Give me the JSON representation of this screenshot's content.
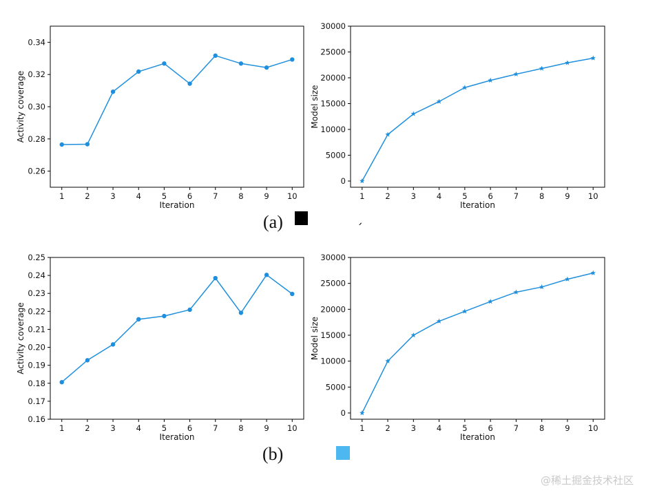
{
  "chart_data": [
    {
      "id": "a-left",
      "type": "line",
      "xlabel": "Iteration",
      "ylabel": "Activity coverage",
      "x": [
        1,
        2,
        3,
        4,
        5,
        6,
        7,
        8,
        9,
        10
      ],
      "series": [
        {
          "values": [
            0.2765,
            0.2767,
            0.3093,
            0.3218,
            0.3268,
            0.3143,
            0.3317,
            0.3268,
            0.3243,
            0.3293
          ]
        }
      ],
      "xlim": [
        0.55,
        10.45
      ],
      "ylim": [
        0.25,
        0.35
      ],
      "yticks": [
        0.26,
        0.28,
        0.3,
        0.32,
        0.34
      ],
      "ytick_labels": [
        "0.26",
        "0.28",
        "0.30",
        "0.32",
        "0.34"
      ],
      "marker": "circle",
      "color": "#1f8fdd"
    },
    {
      "id": "a-right",
      "type": "line",
      "xlabel": "Iteration",
      "ylabel": "Model size",
      "x": [
        1,
        2,
        3,
        4,
        5,
        6,
        7,
        8,
        9,
        10
      ],
      "series": [
        {
          "values": [
            0,
            9000,
            13000,
            15400,
            18100,
            19500,
            20700,
            21800,
            22900,
            23800
          ]
        }
      ],
      "xlim": [
        0.55,
        10.45
      ],
      "ylim": [
        -1200,
        30000
      ],
      "yticks": [
        0,
        5000,
        10000,
        15000,
        20000,
        25000,
        30000
      ],
      "ytick_labels": [
        "0",
        "5000",
        "10000",
        "15000",
        "20000",
        "25000",
        "30000"
      ],
      "marker": "star",
      "color": "#1f8fdd"
    },
    {
      "id": "b-left",
      "type": "line",
      "xlabel": "Iteration",
      "ylabel": "Activity coverage",
      "x": [
        1,
        2,
        3,
        4,
        5,
        6,
        7,
        8,
        9,
        10
      ],
      "series": [
        {
          "values": [
            0.1806,
            0.1928,
            0.2016,
            0.2156,
            0.2174,
            0.2209,
            0.2385,
            0.2192,
            0.2403,
            0.2297
          ]
        }
      ],
      "xlim": [
        0.55,
        10.45
      ],
      "ylim": [
        0.16,
        0.25
      ],
      "yticks": [
        0.16,
        0.17,
        0.18,
        0.19,
        0.2,
        0.21,
        0.22,
        0.23,
        0.24,
        0.25
      ],
      "ytick_labels": [
        "0.16",
        "0.17",
        "0.18",
        "0.19",
        "0.20",
        "0.21",
        "0.22",
        "0.23",
        "0.24",
        "0.25"
      ],
      "marker": "circle",
      "color": "#1f8fdd"
    },
    {
      "id": "b-right",
      "type": "line",
      "xlabel": "Iteration",
      "ylabel": "Model size",
      "x": [
        1,
        2,
        3,
        4,
        5,
        6,
        7,
        8,
        9,
        10
      ],
      "series": [
        {
          "values": [
            0,
            10000,
            15000,
            17700,
            19600,
            21500,
            23300,
            24300,
            25800,
            27000
          ]
        }
      ],
      "xlim": [
        0.55,
        10.45
      ],
      "ylim": [
        -1200,
        30000
      ],
      "yticks": [
        0,
        5000,
        10000,
        15000,
        20000,
        25000,
        30000
      ],
      "ytick_labels": [
        "0",
        "5000",
        "10000",
        "15000",
        "20000",
        "25000",
        "30000"
      ],
      "marker": "star",
      "color": "#1f8fdd"
    }
  ],
  "labels": {
    "panel_a": "(a)",
    "panel_b": "(b)",
    "stray_mark": "ˊ",
    "watermark": "@稀土掘金技术社区"
  },
  "colors": {
    "square_a": "#000000",
    "square_b": "#4db8f0"
  }
}
